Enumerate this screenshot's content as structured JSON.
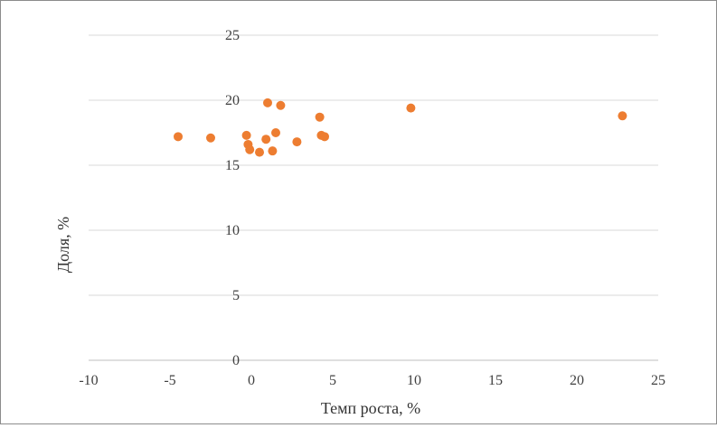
{
  "chart_data": {
    "type": "scatter",
    "title": "",
    "xlabel": "Темп роста, %",
    "ylabel": "Доля, %",
    "xlim": [
      -10,
      25
    ],
    "ylim": [
      0,
      25
    ],
    "x_ticks": [
      -10,
      -5,
      0,
      5,
      10,
      15,
      20,
      25
    ],
    "y_ticks": [
      0,
      5,
      10,
      15,
      20,
      25
    ],
    "grid": "horizontal",
    "legend": "none",
    "marker_color": "#ED7D31",
    "series": [
      {
        "points": [
          {
            "x": -4.5,
            "y": 17.2
          },
          {
            "x": -2.5,
            "y": 17.1
          },
          {
            "x": -0.3,
            "y": 17.3
          },
          {
            "x": -0.2,
            "y": 16.6
          },
          {
            "x": -0.1,
            "y": 16.2
          },
          {
            "x": 0.5,
            "y": 16.0
          },
          {
            "x": 0.9,
            "y": 17.0
          },
          {
            "x": 1.0,
            "y": 19.8
          },
          {
            "x": 1.3,
            "y": 16.1
          },
          {
            "x": 1.5,
            "y": 17.5
          },
          {
            "x": 1.8,
            "y": 19.6
          },
          {
            "x": 2.8,
            "y": 16.8
          },
          {
            "x": 4.2,
            "y": 18.7
          },
          {
            "x": 4.3,
            "y": 17.3
          },
          {
            "x": 4.5,
            "y": 17.2
          },
          {
            "x": 9.8,
            "y": 19.4
          },
          {
            "x": 22.8,
            "y": 18.8
          }
        ]
      }
    ]
  }
}
